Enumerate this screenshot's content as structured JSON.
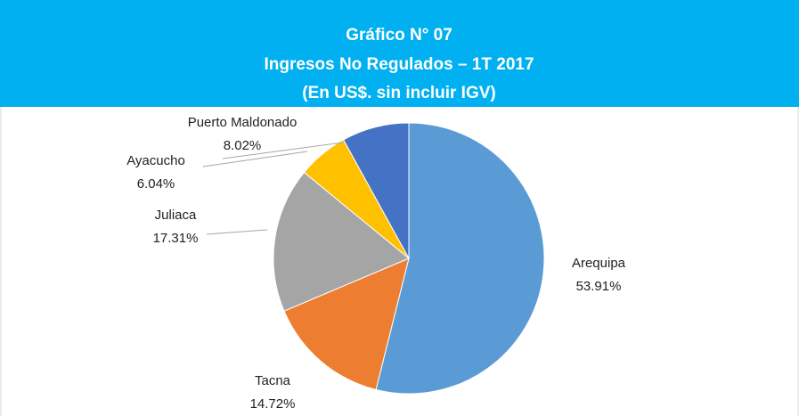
{
  "chart_data": {
    "type": "pie",
    "title": "Gráfico N° 07",
    "subtitle": [
      "Ingresos No Regulados – 1T 2017",
      "(En US$.  sin incluir IGV)"
    ],
    "categories": [
      "Arequipa",
      "Tacna",
      "Juliaca",
      "Ayacucho",
      "Puerto Maldonado"
    ],
    "values": [
      53.91,
      14.72,
      17.31,
      6.04,
      8.02
    ],
    "value_labels": [
      "53.91%",
      "14.72%",
      "17.31%",
      "6.04%",
      "8.02%"
    ],
    "colors": [
      "#5b9bd5",
      "#ed7d31",
      "#a5a5a5",
      "#ffc000",
      "#4472c4"
    ]
  }
}
